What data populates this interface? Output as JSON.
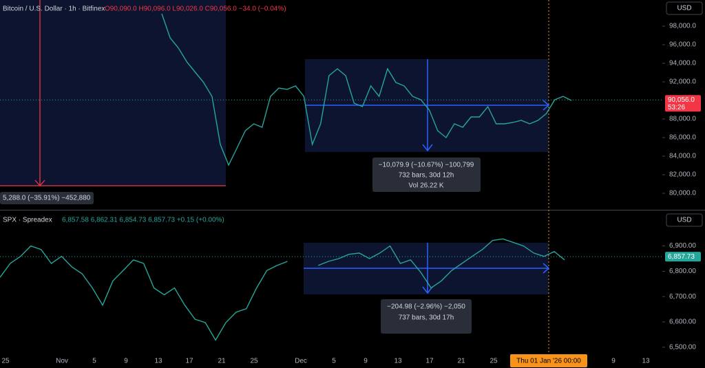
{
  "header_btc": {
    "symbol": "Bitcoin / U.S. Dollar · 1h · Bitfinex",
    "ohlc": "O90,090.0  H90,096.0  L90,026.0  C90,056.0  −34.0 (−0.04%)"
  },
  "header_spx": {
    "symbol": "SPX · Spreadex",
    "ohlc": "6,857.58  6,862.31  6,854.73  6,857.73  +0.15 (+0.00%)"
  },
  "currency_top": "USD",
  "currency_bottom": "USD",
  "chart_data": [
    {
      "type": "line",
      "name": "BTC",
      "color": "#26a69a",
      "ylim": [
        78222,
        100815
      ],
      "yticks": [
        {
          "value": 98000,
          "label": "98,000.0"
        },
        {
          "value": 96000,
          "label": "96,000.0"
        },
        {
          "value": 94000,
          "label": "94,000.0"
        },
        {
          "value": 92000,
          "label": "92,000.0"
        },
        {
          "value": 88000,
          "label": "88,000.0"
        },
        {
          "value": 86000,
          "label": "86,000.0"
        },
        {
          "value": 84000,
          "label": "84,000.0"
        },
        {
          "value": 82000,
          "label": "82,000.0"
        },
        {
          "value": 80000,
          "label": "80,000.0"
        }
      ],
      "values": [
        99333,
        96740,
        95630,
        94150,
        93040,
        91930,
        90440,
        85260,
        83040,
        84890,
        86740,
        87480,
        87110,
        90440,
        91330,
        91190,
        91560,
        90440,
        85260,
        87480,
        92670,
        93410,
        92670,
        89700,
        89330,
        91560,
        90440,
        93410,
        91930,
        91560,
        90440,
        90070,
        88960,
        86740,
        86000,
        87480,
        87110,
        88220,
        88220,
        89330,
        87480,
        87480,
        87630,
        87850,
        87480,
        87850,
        88590,
        90070,
        90440,
        89990
      ],
      "last_value": {
        "value": 90056,
        "label": "90,056.0"
      },
      "countdown": "53:26",
      "measure_left": "5,288.0 (−35.91%) −452,880",
      "measure_right": [
        "−10,079.9 (−10.67%) −100,799",
        "732 bars, 30d 12h",
        "Vol 26.22 K"
      ]
    },
    {
      "type": "line",
      "name": "SPX",
      "color": "#26a69a",
      "ylim": [
        6472,
        7043
      ],
      "yticks": [
        {
          "value": 6900,
          "label": "6,900.00"
        },
        {
          "value": 6800,
          "label": "6,800.00"
        },
        {
          "value": 6700,
          "label": "6,700.00"
        },
        {
          "value": 6600,
          "label": "6,600.00"
        },
        {
          "value": 6500,
          "label": "6,500.00"
        }
      ],
      "values": [
        6776,
        6831,
        6859,
        6900,
        6886,
        6831,
        6859,
        6817,
        6790,
        6734,
        6666,
        6762,
        6803,
        6845,
        6831,
        6734,
        6707,
        6734,
        6666,
        6610,
        6597,
        6528,
        6597,
        6638,
        6652,
        6734,
        6803,
        6823,
        6839,
        null,
        null,
        6823,
        6839,
        6850,
        6867,
        6872,
        6850,
        6872,
        6900,
        6831,
        6845,
        6795,
        6734,
        6762,
        6803,
        6831,
        6859,
        6886,
        6922,
        6928,
        6914,
        6900,
        6872,
        6859,
        6878,
        6845
      ],
      "last_value": {
        "value": 6857.73,
        "label": "6,857.73"
      },
      "measure": [
        "−204.98 (−2.96%) −2,050",
        "737 bars, 30d 17h"
      ]
    }
  ],
  "x_axis": [
    "25",
    "Nov",
    "5",
    "9",
    "13",
    "17",
    "21",
    "25",
    "Dec",
    "5",
    "9",
    "13",
    "17",
    "21",
    "25",
    "9",
    "13"
  ],
  "crosshair_date": "Thu 01 Jan '26   00:00"
}
